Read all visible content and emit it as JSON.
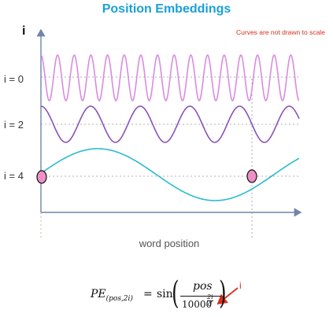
{
  "title": "Position Embeddings",
  "note": "Curves are not drawn to scale",
  "axis_y_label": "i",
  "x_axis_label": "word position",
  "rows": [
    {
      "label": "i = 0",
      "color": "#d98be0",
      "cycles": 15.5,
      "amplitude": 29
    },
    {
      "label": "i = 2",
      "color": "#8a52b8",
      "cycles": 5.2,
      "amplitude": 23
    },
    {
      "label": "i = 4",
      "color": "#2bbccc",
      "cycles": 1.1,
      "amplitude": 33
    }
  ],
  "marker_color": "#ef8fc7",
  "formula": {
    "lhs": "PE",
    "lhs_sub": "(pos,2i)",
    "equals": "=",
    "func": "sin",
    "numerator": "pos",
    "denominator_base": "10000",
    "exponent_num": "2i",
    "exponent_den": "d",
    "annotation": "i"
  }
}
